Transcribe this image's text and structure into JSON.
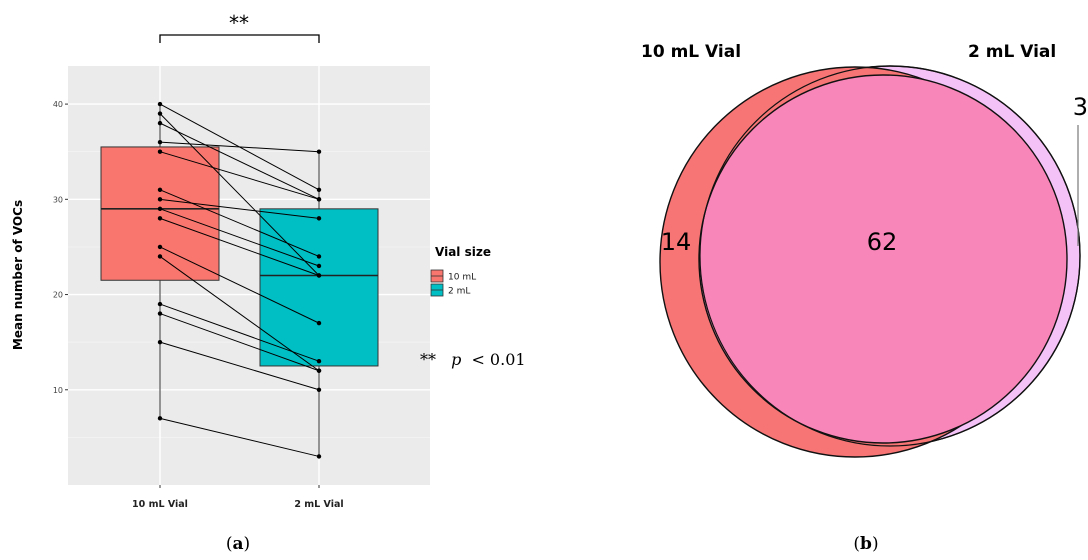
{
  "chart_data": [
    {
      "type": "box",
      "panel_label": "(a)",
      "panel_letter": "a",
      "ylabel": "Mean number of VOCs",
      "xlabel": "",
      "categories": [
        "10 mL Vial",
        "2 mL Vial"
      ],
      "ylim": [
        0,
        44
      ],
      "yticks": [
        "10",
        "20",
        "30",
        "40"
      ],
      "grid": true,
      "boxes": [
        {
          "category": "10 mL Vial",
          "q1": 21.5,
          "median": 29,
          "q3": 35.5,
          "min": 7,
          "max": 40,
          "color": "#F8766D"
        },
        {
          "category": "2 mL Vial",
          "q1": 12.5,
          "median": 22,
          "q3": 29,
          "min": 3,
          "max": 35,
          "color": "#00BFC4"
        }
      ],
      "paired": [
        [
          40,
          31
        ],
        [
          39,
          22
        ],
        [
          38,
          30
        ],
        [
          36,
          35
        ],
        [
          35,
          30
        ],
        [
          31,
          24
        ],
        [
          30,
          28
        ],
        [
          29,
          23
        ],
        [
          28,
          22
        ],
        [
          25,
          17
        ],
        [
          24,
          12
        ],
        [
          19,
          13
        ],
        [
          18,
          12
        ],
        [
          15,
          10
        ],
        [
          7,
          3
        ]
      ],
      "legend": {
        "title": "Vial size",
        "placement": "right",
        "entries": [
          {
            "label": "10 mL",
            "color": "#F8766D"
          },
          {
            "label": "2 mL",
            "color": "#00BFC4"
          }
        ]
      },
      "significance": {
        "bracket_label": "**",
        "note_stars": "**",
        "note_p": "p",
        "note_value": "< 0.01"
      }
    },
    {
      "type": "venn",
      "panel_label": "(b)",
      "panel_letter": "b",
      "sets": [
        {
          "label": "10 mL Vial",
          "only": "14",
          "color": "#F87575"
        },
        {
          "label": "2 mL Vial",
          "only": "3",
          "color": "#F4C2F7"
        }
      ],
      "intersection": "62",
      "intersection_color": "#F886B8"
    }
  ]
}
